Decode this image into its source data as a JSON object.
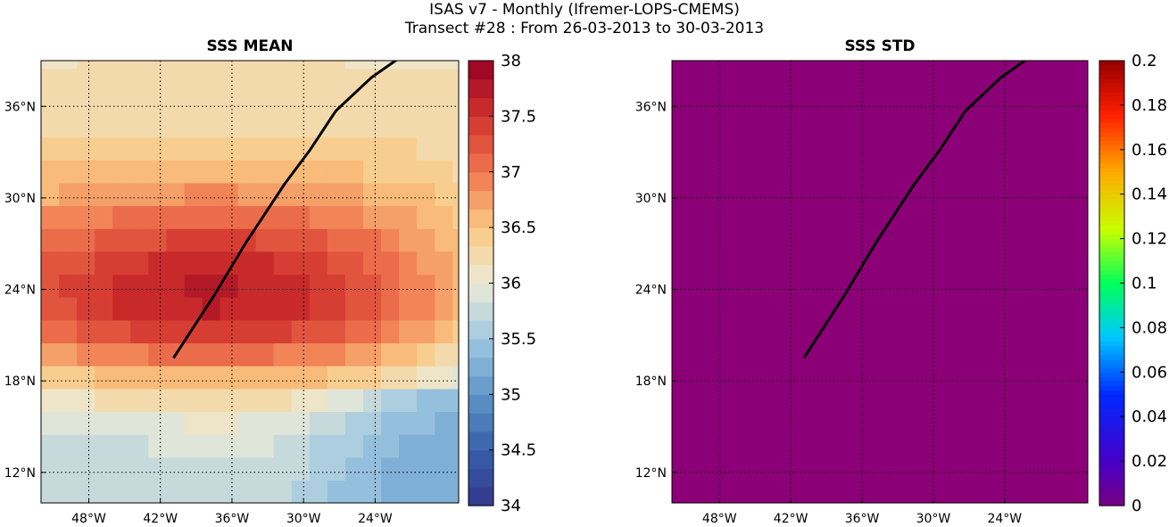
{
  "suptitle": {
    "line1": "ISAS v7 - Monthly (Ifremer-LOPS-CMEMS)",
    "line2": "Transect #28 : From 26-03-2013 to 30-03-2013"
  },
  "chart_data": [
    {
      "type": "heatmap",
      "title": "SSS MEAN",
      "xlabel": "",
      "ylabel": "",
      "xlim": [
        -52,
        -17
      ],
      "ylim": [
        10,
        39
      ],
      "x_ticks": [
        -48,
        -42,
        -36,
        -30,
        -24
      ],
      "x_tick_labels": [
        "48°W",
        "42°W",
        "36°W",
        "30°W",
        "24°W"
      ],
      "y_ticks": [
        12,
        18,
        24,
        30,
        36
      ],
      "y_tick_labels": [
        "12°N",
        "18°N",
        "24°N",
        "30°N",
        "36°N"
      ],
      "grid": true,
      "colorbar": {
        "min": 34,
        "max": 38,
        "ticks": [
          34,
          34.5,
          35,
          35.5,
          36,
          36.5,
          37,
          37.5,
          38
        ],
        "tick_labels": [
          "34",
          "34.5",
          "35",
          "35.5",
          "36",
          "36.5",
          "37",
          "37.5",
          "38"
        ],
        "colormap": "Spectral_r",
        "levels": 24
      },
      "field_description": "salinity max ~37.7 centered near 23.5N 38W, decreasing north to ~36.2 and south to ~35.6 in the southeast",
      "transect": {
        "lon": [
          -40.9,
          -37.5,
          -34.8,
          -31.6,
          -29.5,
          -27.3,
          -24.3,
          -20.1
        ],
        "lat": [
          19.5,
          23.6,
          27.1,
          30.9,
          33.1,
          35.7,
          37.9,
          40.2
        ]
      }
    },
    {
      "type": "heatmap",
      "title": "SSS STD",
      "xlabel": "",
      "ylabel": "",
      "xlim": [
        -52,
        -17
      ],
      "ylim": [
        10,
        39
      ],
      "x_ticks": [
        -48,
        -42,
        -36,
        -30,
        -24
      ],
      "x_tick_labels": [
        "48°W",
        "42°W",
        "36°W",
        "30°W",
        "24°W"
      ],
      "y_ticks": [
        12,
        18,
        24,
        30,
        36
      ],
      "y_tick_labels": [
        "12°N",
        "18°N",
        "24°N",
        "30°N",
        "36°N"
      ],
      "grid": true,
      "colorbar": {
        "min": 0,
        "max": 0.2,
        "ticks": [
          0,
          0.02,
          0.04,
          0.06,
          0.08,
          0.1,
          0.12,
          0.14,
          0.16,
          0.18,
          0.2
        ],
        "tick_labels": [
          "0",
          "0.02",
          "0.04",
          "0.06",
          "0.08",
          "0.1",
          "0.12",
          "0.14",
          "0.16",
          "0.18",
          "0.2"
        ],
        "colormap": "jet"
      },
      "field_value": 0,
      "field_color": "#8b0077",
      "transect": {
        "lon": [
          -40.9,
          -37.5,
          -34.8,
          -31.6,
          -29.5,
          -27.3,
          -24.3,
          -20.1
        ],
        "lat": [
          19.5,
          23.6,
          27.1,
          30.9,
          33.1,
          35.7,
          37.9,
          40.2
        ]
      }
    }
  ]
}
